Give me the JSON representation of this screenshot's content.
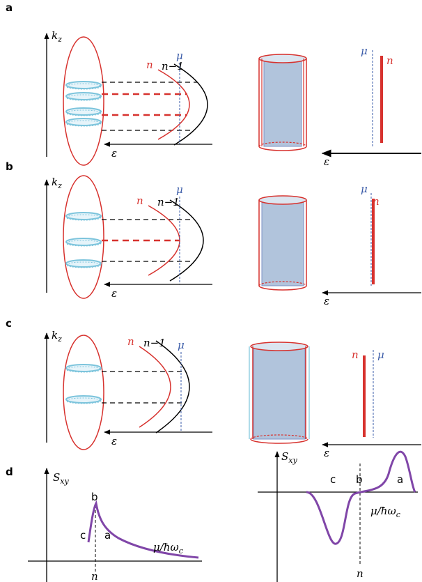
{
  "panels": [
    {
      "label": "a",
      "axis": {
        "base": "k",
        "sub": "z"
      },
      "curve_labels": [
        "n",
        "n−1"
      ],
      "mu": "μ",
      "epsilon": "ε",
      "right_mu": "μ",
      "right_n": "n",
      "right_epsilon": "ε"
    },
    {
      "label": "b",
      "axis": {
        "base": "k",
        "sub": "z"
      },
      "curve_labels": [
        "n",
        "n−1"
      ],
      "mu": "μ",
      "epsilon": "ε",
      "right_mu": "μ",
      "right_n": "n",
      "right_epsilon": "ε"
    },
    {
      "label": "c",
      "axis": {
        "base": "k",
        "sub": "z"
      },
      "curve_labels": [
        "n",
        "n−1"
      ],
      "mu": "μ",
      "epsilon": "ε",
      "right_mu": "μ",
      "right_n": "n",
      "right_epsilon": "ε"
    }
  ],
  "panel_d": {
    "label": "d",
    "left": {
      "y_axis": {
        "base": "S",
        "sub": "xy"
      },
      "x_axis": {
        "base": "μ/ħω",
        "sub": "c"
      },
      "point_labels": [
        "c",
        "b",
        "a"
      ],
      "n": "n"
    },
    "right": {
      "y_axis": {
        "base": "S",
        "sub": "xy"
      },
      "x_axis": {
        "base": "μ/ħω",
        "sub": "c"
      },
      "point_labels": [
        "c",
        "b",
        "a"
      ],
      "n": "n"
    }
  }
}
